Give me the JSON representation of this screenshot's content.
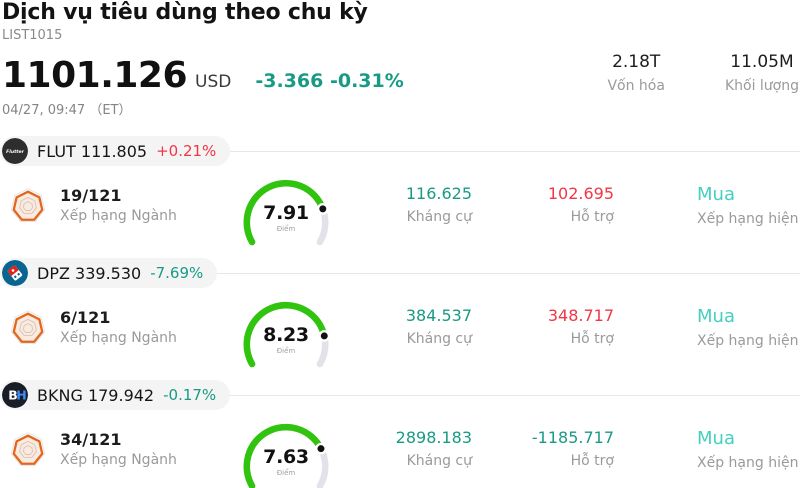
{
  "header": {
    "title": "Dịch vụ tiêu dùng theo chu kỳ",
    "list_id": "LIST1015",
    "price": "1101.126",
    "currency": "USD",
    "change": "-3.366 -0.31%",
    "change_color": "#199a85",
    "datetime": "04/27, 09:47 （ET）",
    "stats": [
      {
        "value": "2.18T",
        "label": "Vốn hóa"
      },
      {
        "value": "11.05M",
        "label": "Khối lượng"
      }
    ]
  },
  "labels": {
    "rank": "Xếp hạng Ngành",
    "score_unit": "Điểm",
    "resistance": "Kháng cự",
    "support": "Hỗ trợ",
    "current_rating": "Xếp hạng hiện tại"
  },
  "colors": {
    "teal": "#199a85",
    "red": "#f23645",
    "rating_cyan": "#45cfc0",
    "gauge_green": "#30c40e",
    "gauge_track": "#e2e2ea"
  },
  "rows": [
    {
      "ticker": "FLUT",
      "last": "111.805",
      "change": "+0.21%",
      "change_color": "#f23645",
      "rank": "19/121",
      "score": 7.91,
      "score_text": "7.91",
      "resistance": "116.625",
      "resistance_color": "#199a85",
      "support": "102.695",
      "support_color": "#f23645",
      "rating": "Mua"
    },
    {
      "ticker": "DPZ",
      "last": "339.530",
      "change": "-7.69%",
      "change_color": "#199a85",
      "rank": "6/121",
      "score": 8.23,
      "score_text": "8.23",
      "resistance": "384.537",
      "resistance_color": "#199a85",
      "support": "348.717",
      "support_color": "#f23645",
      "rating": "Mua"
    },
    {
      "ticker": "BKNG",
      "last": "179.942",
      "change": "-0.17%",
      "change_color": "#199a85",
      "rank": "34/121",
      "score": 7.63,
      "score_text": "7.63",
      "resistance": "2898.183",
      "resistance_color": "#199a85",
      "support": "-1185.717",
      "support_color": "#199a85",
      "rating": "Mua"
    }
  ]
}
